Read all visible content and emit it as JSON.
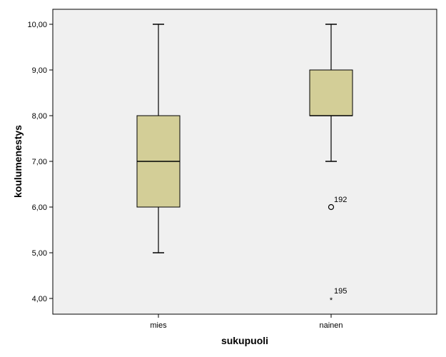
{
  "chart_data": {
    "type": "boxplot",
    "title": "",
    "xlabel": "sukupuoli",
    "ylabel": "koulumenestys",
    "ylim": [
      3.75,
      10.25
    ],
    "yticks": [
      {
        "value": 4,
        "label": "4,00"
      },
      {
        "value": 5,
        "label": "5,00"
      },
      {
        "value": 6,
        "label": "6,00"
      },
      {
        "value": 7,
        "label": "7,00"
      },
      {
        "value": 8,
        "label": "8,00"
      },
      {
        "value": 9,
        "label": "9,00"
      },
      {
        "value": 10,
        "label": "10,00"
      }
    ],
    "categories": [
      "mies",
      "nainen"
    ],
    "boxes": [
      {
        "category": "mies",
        "min": 5,
        "q1": 6,
        "median": 7,
        "q3": 8,
        "max": 10,
        "outliers": []
      },
      {
        "category": "nainen",
        "min": 7,
        "q1": 8,
        "median": 8,
        "q3": 9,
        "max": 10,
        "outliers": [
          {
            "value": 6,
            "label": "192",
            "marker": "circle"
          },
          {
            "value": 4,
            "label": "195",
            "marker": "star"
          }
        ]
      }
    ],
    "grid": false,
    "colors": {
      "plot_background": "#f0f0f0",
      "box_fill": "#d3ce97",
      "line": "#000000"
    }
  }
}
